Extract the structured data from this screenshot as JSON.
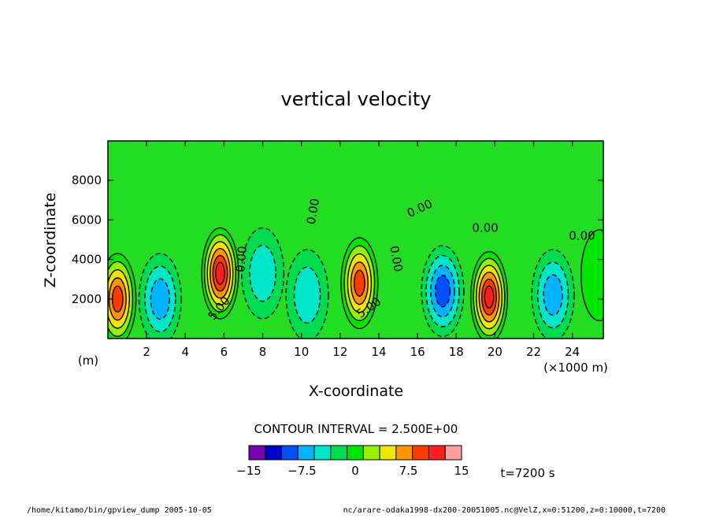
{
  "chart_data": {
    "type": "heatmap",
    "title": "vertical velocity",
    "xlabel": "X-coordinate",
    "ylabel": "Z-coordinate",
    "x_unit": "(×1000 m)",
    "y_unit": "(m)",
    "xlim": [
      0,
      25.6
    ],
    "ylim": [
      0,
      10000
    ],
    "x_ticks": [
      2,
      4,
      6,
      8,
      10,
      12,
      14,
      16,
      18,
      20,
      22,
      24
    ],
    "y_ticks": [
      2000,
      4000,
      6000,
      8000
    ],
    "contour_interval_text": "CONTOUR INTERVAL = 2.500E+00",
    "contour_labels": [
      {
        "text": "0.00",
        "x": 10.8,
        "z": 6400,
        "rotate": -80
      },
      {
        "text": "0.00",
        "x": 16.2,
        "z": 6400,
        "rotate": -25
      },
      {
        "text": "0.00",
        "x": 19.5,
        "z": 5400,
        "rotate": 0
      },
      {
        "text": "0.00",
        "x": 24.5,
        "z": 5000,
        "rotate": 0
      },
      {
        "text": "0.00",
        "x": 7.1,
        "z": 4000,
        "rotate": -85
      },
      {
        "text": "0.00",
        "x": 14.7,
        "z": 4000,
        "rotate": 80
      },
      {
        "text": "5.00",
        "x": 5.9,
        "z": 1400,
        "rotate": -50
      },
      {
        "text": "5.00",
        "x": 13.6,
        "z": 1400,
        "rotate": -35
      }
    ],
    "cells": [
      {
        "label": "updraft",
        "x": 0.5,
        "z": 2000,
        "peak": 12.5
      },
      {
        "label": "downdraft",
        "x": 2.7,
        "z": 2000,
        "peak": -7.5
      },
      {
        "label": "updraft",
        "x": 5.8,
        "z": 3300,
        "peak": 15
      },
      {
        "label": "downdraft",
        "x": 8.0,
        "z": 3300,
        "peak": -5
      },
      {
        "label": "downdraft",
        "x": 10.3,
        "z": 2200,
        "peak": -5
      },
      {
        "label": "updraft",
        "x": 13.0,
        "z": 2800,
        "peak": 12.5
      },
      {
        "label": "downdraft",
        "x": 17.3,
        "z": 2400,
        "peak": -10
      },
      {
        "label": "updraft",
        "x": 19.7,
        "z": 2100,
        "peak": 15
      },
      {
        "label": "downdraft",
        "x": 23.0,
        "z": 2200,
        "peak": -7.5
      },
      {
        "label": "updraft",
        "x": 25.4,
        "z": 3200,
        "peak": 2.5
      }
    ],
    "colorbar": {
      "colors": [
        "#7a00b4",
        "#0000cd",
        "#0050ff",
        "#00b4ff",
        "#00e6c8",
        "#00dc50",
        "#00e600",
        "#96f000",
        "#f0e600",
        "#ff9600",
        "#ff3c00",
        "#ff1e1e",
        "#ffa0a0"
      ],
      "tick_labels": [
        "−15",
        "−7.5",
        "0",
        "7.5",
        "15"
      ],
      "tick_values": [
        -15,
        -7.5,
        0,
        7.5,
        15
      ]
    },
    "field_color": "#22dd22"
  },
  "time_text": "t=7200 s",
  "footer": {
    "left": "/home/kitamo/bin/gpview_dump  2005-10-05",
    "right": "nc/arare-odaka1998-dx200-20051005.nc@VelZ,x=0:51200,z=0:10000,t=7200"
  }
}
